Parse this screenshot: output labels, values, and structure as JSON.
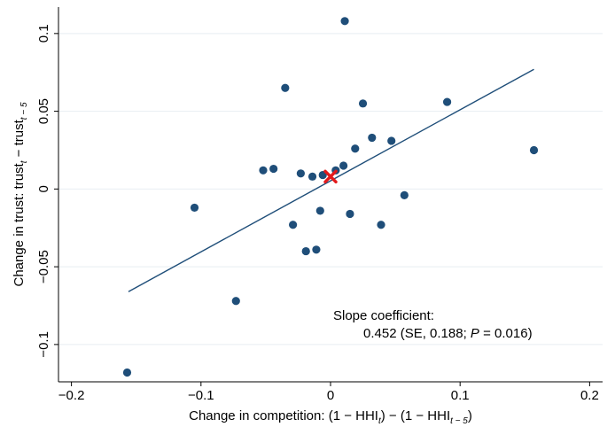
{
  "chart_data": {
    "type": "scatter",
    "title": "",
    "xlabel": {
      "main": "Change in competition: (1 − HHI",
      "sub1": "t",
      "mid": ") − (1 − HHI",
      "sub2": "t − 5",
      "end": ")"
    },
    "ylabel": {
      "main": "Change in trust: trust",
      "sub1": "t",
      "mid": " − trust",
      "sub2": "t − 5",
      "end": ""
    },
    "xlim": [
      -0.21,
      0.21
    ],
    "ylim": [
      -0.124,
      0.117
    ],
    "xticks": [
      -0.2,
      -0.1,
      0,
      0.1,
      0.2
    ],
    "xtick_labels": [
      "−0.2",
      "−0.1",
      "0",
      "0.1",
      "0.2"
    ],
    "yticks": [
      -0.1,
      -0.05,
      0,
      0.05,
      0.1
    ],
    "ytick_labels": [
      "−0.1",
      "−0.05",
      "0",
      "0.05",
      "0.1"
    ],
    "grid": "horizontal",
    "colors": {
      "points": "#1f4e79",
      "fit_line": "#1f4e79",
      "marker": "#e31a1c"
    },
    "points": [
      {
        "x": 0.011,
        "y": 0.108
      },
      {
        "x": -0.035,
        "y": 0.065
      },
      {
        "x": 0.09,
        "y": 0.056
      },
      {
        "x": 0.025,
        "y": 0.055
      },
      {
        "x": 0.032,
        "y": 0.033
      },
      {
        "x": 0.047,
        "y": 0.031
      },
      {
        "x": 0.019,
        "y": 0.026
      },
      {
        "x": 0.157,
        "y": 0.025
      },
      {
        "x": 0.01,
        "y": 0.015
      },
      {
        "x": -0.052,
        "y": 0.012
      },
      {
        "x": -0.044,
        "y": 0.013
      },
      {
        "x": 0.004,
        "y": 0.012
      },
      {
        "x": -0.023,
        "y": 0.01
      },
      {
        "x": -0.014,
        "y": 0.008
      },
      {
        "x": -0.006,
        "y": 0.009
      },
      {
        "x": 0.057,
        "y": -0.004
      },
      {
        "x": -0.008,
        "y": -0.014
      },
      {
        "x": -0.105,
        "y": -0.012
      },
      {
        "x": 0.015,
        "y": -0.016
      },
      {
        "x": -0.029,
        "y": -0.023
      },
      {
        "x": 0.039,
        "y": -0.023
      },
      {
        "x": -0.019,
        "y": -0.04
      },
      {
        "x": -0.011,
        "y": -0.039
      },
      {
        "x": -0.073,
        "y": -0.072
      },
      {
        "x": -0.157,
        "y": -0.118
      }
    ],
    "highlight": {
      "x": 0.0,
      "y": 0.008
    },
    "fit_line": {
      "x": [
        -0.156,
        0.157
      ],
      "y": [
        -0.066,
        0.077
      ]
    },
    "annotation": {
      "line1": "Slope coefficient:",
      "line2a": "0.452 (SE, 0.188; ",
      "line2p": "P",
      "line2b": " = 0.016)"
    }
  }
}
